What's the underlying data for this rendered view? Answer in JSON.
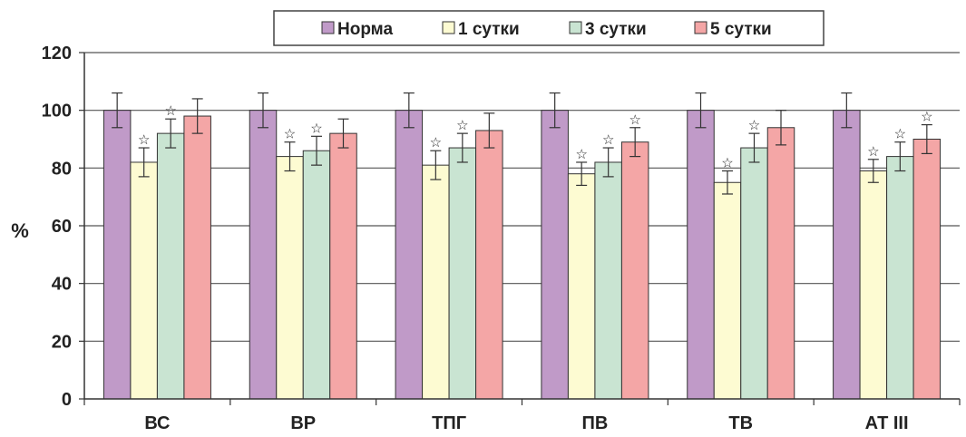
{
  "chart_data": {
    "type": "bar",
    "title": "",
    "xlabel": "",
    "ylabel": "%",
    "ylim": [
      0,
      120
    ],
    "yticks": [
      0,
      20,
      40,
      60,
      80,
      100,
      120
    ],
    "grid": true,
    "legend_position": "top-center",
    "categories": [
      "ВС",
      "ВР",
      "ТПГ",
      "ПВ",
      "ТВ",
      "АТ III"
    ],
    "series": [
      {
        "name": "Норма",
        "color": "#c09ac8",
        "values": [
          100,
          100,
          100,
          100,
          100,
          100
        ],
        "errors": [
          6,
          6,
          6,
          6,
          6,
          6
        ],
        "significant": [
          false,
          false,
          false,
          false,
          false,
          false
        ]
      },
      {
        "name": "1 сутки",
        "color": "#fdfbd2",
        "values": [
          82,
          84,
          81,
          78,
          75,
          79
        ],
        "errors": [
          5,
          5,
          5,
          4,
          4,
          4
        ],
        "significant": [
          true,
          true,
          true,
          true,
          true,
          true
        ]
      },
      {
        "name": "3 сутки",
        "color": "#c9e4d2",
        "values": [
          92,
          86,
          87,
          82,
          87,
          84
        ],
        "errors": [
          5,
          5,
          5,
          5,
          5,
          5
        ],
        "significant": [
          true,
          true,
          true,
          true,
          true,
          true
        ]
      },
      {
        "name": "5 сутки",
        "color": "#f4a6a6",
        "values": [
          98,
          92,
          93,
          89,
          94,
          90
        ],
        "errors": [
          6,
          5,
          6,
          5,
          6,
          5
        ],
        "significant": [
          false,
          false,
          false,
          true,
          false,
          true
        ]
      }
    ],
    "significance_marker": "☆"
  }
}
